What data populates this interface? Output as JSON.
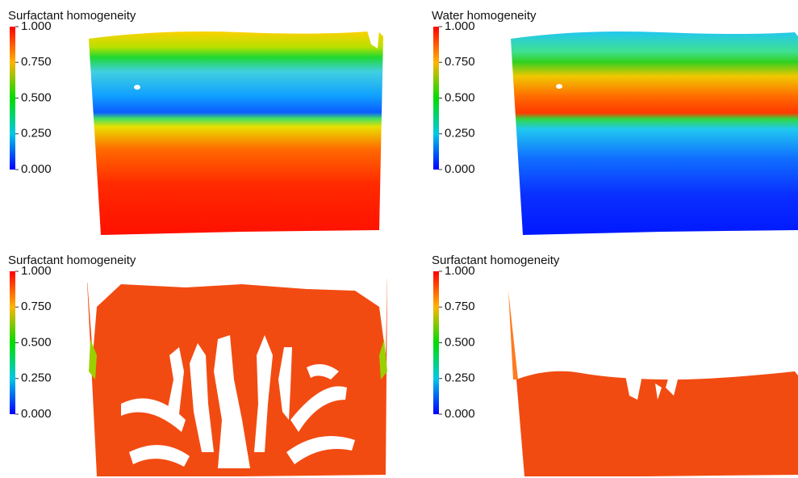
{
  "panels": [
    {
      "title": "Surfactant homogeneity",
      "colorbar": {
        "lim": [
          0,
          1
        ],
        "ticks": [
          {
            "value": 1,
            "label": "1.000"
          },
          {
            "value": 0.75,
            "label": "0.750"
          },
          {
            "value": 0.5,
            "label": "0.500"
          },
          {
            "value": 0.25,
            "label": "0.250"
          },
          {
            "value": 0,
            "label": "0.000"
          }
        ]
      }
    },
    {
      "title": "Water homogeneity",
      "colorbar": {
        "lim": [
          0,
          1
        ],
        "ticks": [
          {
            "value": 1,
            "label": "1.000"
          },
          {
            "value": 0.75,
            "label": "0.750"
          },
          {
            "value": 0.5,
            "label": "0.500"
          },
          {
            "value": 0.25,
            "label": "0.250"
          },
          {
            "value": 0,
            "label": "0.000"
          }
        ]
      }
    },
    {
      "title": "Surfactant homogeneity",
      "colorbar": {
        "lim": [
          0,
          1
        ],
        "ticks": [
          {
            "value": 1,
            "label": "1.000"
          },
          {
            "value": 0.75,
            "label": "0.750"
          },
          {
            "value": 0.5,
            "label": "0.500"
          },
          {
            "value": 0.25,
            "label": "0.250"
          },
          {
            "value": 0,
            "label": "0.000"
          }
        ]
      }
    },
    {
      "title": "Surfactant homogeneity",
      "colorbar": {
        "lim": [
          0,
          1
        ],
        "ticks": [
          {
            "value": 1,
            "label": "1.000"
          },
          {
            "value": 0.75,
            "label": "0.750"
          },
          {
            "value": 0.5,
            "label": "0.500"
          },
          {
            "value": 0.25,
            "label": "0.250"
          },
          {
            "value": 0,
            "label": "0.000"
          }
        ]
      }
    }
  ]
}
